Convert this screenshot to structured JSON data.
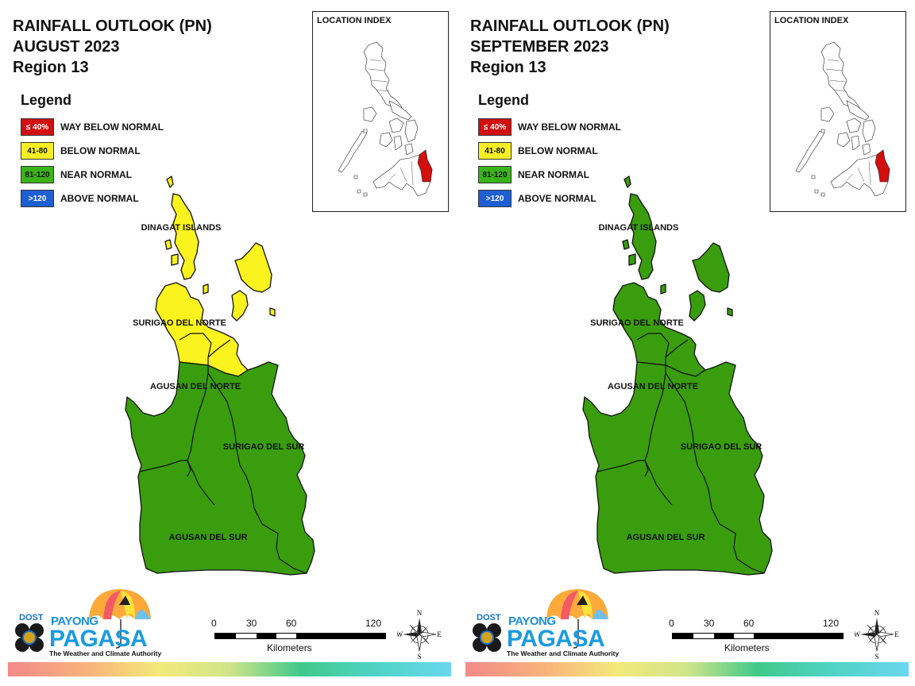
{
  "panels": [
    {
      "title_lines": [
        "RAINFALL OUTLOOK (PN)",
        "AUGUST 2023",
        "Region 13"
      ],
      "provinces": {
        "dinagat": "DINAGAT ISLANDS",
        "surigao_norte": "SURIGAO DEL NORTE",
        "agusan_norte": "AGUSAN DEL NORTE",
        "surigao_sur": "SURIGAO DEL SUR",
        "agusan_sur": "AGUSAN DEL SUR"
      },
      "north_fill_category": "BELOW NORMAL",
      "south_fill_category": "NEAR NORMAL"
    },
    {
      "title_lines": [
        "RAINFALL OUTLOOK (PN)",
        "SEPTEMBER 2023",
        "Region 13"
      ],
      "provinces": {
        "dinagat": "DINAGAT ISLANDS",
        "surigao_norte": "SURIGAO DEL NORTE",
        "agusan_norte": "AGUSAN DEL NORTE",
        "surigao_sur": "SURIGAO DEL SUR",
        "agusan_sur": "AGUSAN DEL SUR"
      },
      "north_fill_category": "NEAR NORMAL",
      "south_fill_category": "NEAR NORMAL"
    }
  ],
  "legend": {
    "title": "Legend",
    "items": [
      {
        "range": "≤ 40%",
        "label": "WAY BELOW NORMAL",
        "color": "#d20f0f",
        "text_color": "#ffffff"
      },
      {
        "range": "41-80",
        "label": "BELOW NORMAL",
        "color": "#f7ef23",
        "text_color": "#111111"
      },
      {
        "range": "81-120",
        "label": "NEAR NORMAL",
        "color": "#3bb31a",
        "text_color": "#111111"
      },
      {
        "range": ">120",
        "label": "ABOVE NORMAL",
        "color": "#1f5fd4",
        "text_color": "#ffffff"
      }
    ]
  },
  "location_index": {
    "title": "LOCATION INDEX",
    "highlight_color": "#d20f0f"
  },
  "map_colors": {
    "near_normal": "#3a9d0d",
    "below_normal": "#fbf31d"
  },
  "scale_bar": {
    "ticks": [
      "0",
      "30",
      "60",
      "120"
    ],
    "unit": "Kilometers"
  },
  "compass": {
    "n": "N",
    "s": "S",
    "e": "E",
    "w": "W"
  },
  "logo": {
    "dost": "DOST",
    "payong": "PAYONG",
    "pagasa": "PAGASA",
    "tagline": "The Weather and Climate Authority"
  }
}
